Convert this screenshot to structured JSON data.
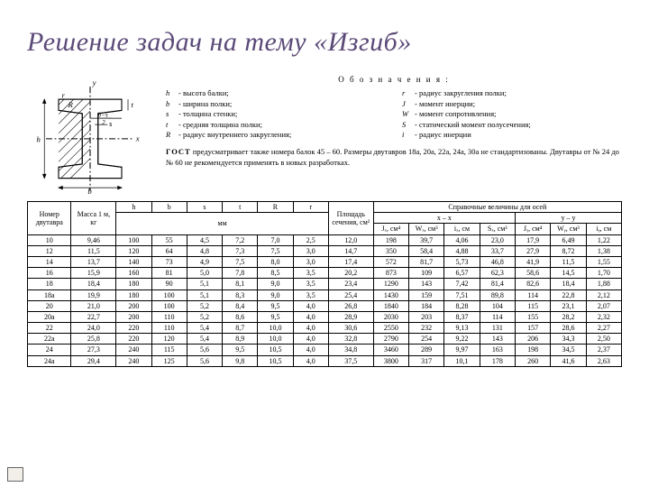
{
  "title": "Решение задач на тему «Изгиб»",
  "legend": {
    "header": "О б о з н а ч е н и я :",
    "left": [
      {
        "sym": "h",
        "txt": "- высота балки;"
      },
      {
        "sym": "b",
        "txt": "- ширина полки;"
      },
      {
        "sym": "s",
        "txt": "- толщина стенки;"
      },
      {
        "sym": "t",
        "txt": "- средняя толщина полки;"
      },
      {
        "sym": "R",
        "txt": "- радиус внутреннего закругления;"
      }
    ],
    "right": [
      {
        "sym": "r",
        "txt": "- радиус закругления полки;"
      },
      {
        "sym": "J",
        "txt": "- момент инерции;"
      },
      {
        "sym": "W",
        "txt": "- момент сопротивления;"
      },
      {
        "sym": "S",
        "txt": "- статический момент полусечения;"
      },
      {
        "sym": "i",
        "txt": "- радиус инерции"
      }
    ],
    "gost": "ГОСТ предусматривает также номера балок 45 – 60. Размеры двутавров 18а, 20а, 22а, 24а, 30а не стандартизованы. Двутавры от № 24 до № 60 не рекоменду­ется применять в новых разработках."
  },
  "table": {
    "corner_num": "Номер двутавра",
    "corner_mass": "Масса 1 м, кг",
    "dims_unit": "мм",
    "area": "Площадь сечения, см²",
    "ref_header": "Справочные величины для осей",
    "axis_x": "x – x",
    "axis_y": "y – y",
    "dim_headers": [
      "h",
      "b",
      "s",
      "t",
      "R",
      "r"
    ],
    "x_headers": [
      "Jₓ, см⁴",
      "Wₓ, см³",
      "iₓ, см",
      "Sₓ, см³"
    ],
    "y_headers": [
      "Jᵧ, см⁴",
      "Wᵧ, см³",
      "iᵧ, см"
    ],
    "rows": [
      [
        "10",
        "9,46",
        "100",
        "55",
        "4,5",
        "7,2",
        "7,0",
        "2,5",
        "12,0",
        "198",
        "39,7",
        "4,06",
        "23,0",
        "17,9",
        "6,49",
        "1,22"
      ],
      [
        "12",
        "11,5",
        "120",
        "64",
        "4,8",
        "7,3",
        "7,5",
        "3,0",
        "14,7",
        "350",
        "58,4",
        "4,88",
        "33,7",
        "27,9",
        "8,72",
        "1,38"
      ],
      [
        "14",
        "13,7",
        "140",
        "73",
        "4,9",
        "7,5",
        "8,0",
        "3,0",
        "17,4",
        "572",
        "81,7",
        "5,73",
        "46,8",
        "41,9",
        "11,5",
        "1,55"
      ],
      [
        "16",
        "15,9",
        "160",
        "81",
        "5,0",
        "7,8",
        "8,5",
        "3,5",
        "20,2",
        "873",
        "109",
        "6,57",
        "62,3",
        "58,6",
        "14,5",
        "1,70"
      ],
      [
        "18",
        "18,4",
        "180",
        "90",
        "5,1",
        "8,1",
        "9,0",
        "3,5",
        "23,4",
        "1290",
        "143",
        "7,42",
        "81,4",
        "82,6",
        "18,4",
        "1,88"
      ],
      [
        "18a",
        "19,9",
        "180",
        "100",
        "5,1",
        "8,3",
        "9,0",
        "3,5",
        "25,4",
        "1430",
        "159",
        "7,51",
        "89,8",
        "114",
        "22,8",
        "2,12"
      ],
      [
        "20",
        "21,0",
        "200",
        "100",
        "5,2",
        "8,4",
        "9,5",
        "4,0",
        "26,8",
        "1840",
        "184",
        "8,28",
        "104",
        "115",
        "23,1",
        "2,07"
      ],
      [
        "20a",
        "22,7",
        "200",
        "110",
        "5,2",
        "8,6",
        "9,5",
        "4,0",
        "28,9",
        "2030",
        "203",
        "8,37",
        "114",
        "155",
        "28,2",
        "2,32"
      ],
      [
        "22",
        "24,0",
        "220",
        "110",
        "5,4",
        "8,7",
        "10,0",
        "4,0",
        "30,6",
        "2550",
        "232",
        "9,13",
        "131",
        "157",
        "28,6",
        "2,27"
      ],
      [
        "22a",
        "25,8",
        "220",
        "120",
        "5,4",
        "8,9",
        "10,0",
        "4,0",
        "32,8",
        "2790",
        "254",
        "9,22",
        "143",
        "206",
        "34,3",
        "2,50"
      ],
      [
        "24",
        "27,3",
        "240",
        "115",
        "5,6",
        "9,5",
        "10,5",
        "4,0",
        "34,8",
        "3460",
        "289",
        "9,97",
        "163",
        "198",
        "34,5",
        "2,37"
      ],
      [
        "24a",
        "29,4",
        "240",
        "125",
        "5,6",
        "9,8",
        "10,5",
        "4,0",
        "37,5",
        "3800",
        "317",
        "10,1",
        "178",
        "260",
        "41,6",
        "2,63"
      ]
    ]
  },
  "diagram": {
    "labels": {
      "y": "y",
      "x": "x",
      "h": "h",
      "b": "b",
      "s": "s",
      "t": "t",
      "R": "R",
      "r": "r",
      "bs2": "b−s",
      "half": "2"
    }
  }
}
